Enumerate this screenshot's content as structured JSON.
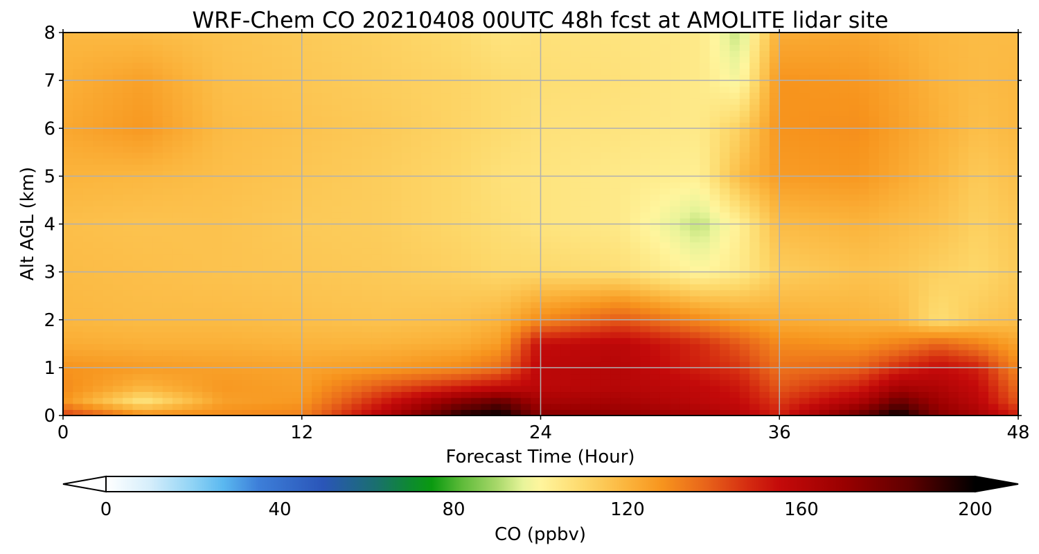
{
  "chart_data": {
    "type": "heatmap",
    "title": "WRF-Chem CO  20210408 00UTC 48h fcst at AMOLITE lidar site",
    "xlabel": "Forecast Time (Hour)",
    "ylabel": "Alt AGL (km)",
    "xlim": [
      0,
      48
    ],
    "ylim": [
      0,
      8
    ],
    "xticks": [
      "0",
      "12",
      "24",
      "36",
      "48"
    ],
    "yticks": [
      "0",
      "1",
      "2",
      "3",
      "4",
      "5",
      "6",
      "7",
      "8"
    ],
    "grid": true,
    "x": [
      0,
      4,
      8,
      12,
      16,
      20,
      22,
      24,
      28,
      32,
      34,
      36,
      40,
      42,
      44,
      46,
      48
    ],
    "y": [
      0,
      0.3,
      0.6,
      1,
      1.5,
      2,
      3,
      4,
      5,
      6,
      7,
      8
    ],
    "z": [
      [
        145,
        130,
        130,
        132,
        160,
        195,
        200,
        175,
        172,
        165,
        160,
        150,
        182,
        200,
        175,
        165,
        150
      ],
      [
        128,
        106,
        125,
        127,
        150,
        175,
        183,
        165,
        165,
        158,
        155,
        145,
        162,
        182,
        168,
        158,
        140
      ],
      [
        130,
        120,
        127,
        125,
        140,
        150,
        155,
        158,
        160,
        156,
        152,
        140,
        150,
        165,
        162,
        155,
        136
      ],
      [
        128,
        126,
        125,
        124,
        126,
        130,
        136,
        158,
        160,
        150,
        146,
        135,
        138,
        148,
        155,
        150,
        130
      ],
      [
        122,
        121,
        121,
        120,
        120,
        122,
        126,
        155,
        158,
        148,
        140,
        130,
        128,
        132,
        138,
        132,
        124
      ],
      [
        119,
        118,
        118,
        117,
        116,
        117,
        120,
        130,
        140,
        130,
        125,
        122,
        120,
        118,
        108,
        114,
        117
      ],
      [
        118,
        117,
        116,
        115,
        114,
        112,
        110,
        110,
        108,
        100,
        104,
        113,
        116,
        115,
        112,
        110,
        114
      ],
      [
        117,
        116,
        116,
        114,
        113,
        110,
        108,
        106,
        104,
        92,
        102,
        118,
        120,
        118,
        116,
        112,
        115
      ],
      [
        120,
        119,
        117,
        115,
        113,
        110,
        107,
        106,
        104,
        102,
        118,
        126,
        127,
        123,
        119,
        114,
        117
      ],
      [
        123,
        127,
        118,
        116,
        114,
        111,
        109,
        107,
        106,
        104,
        112,
        128,
        129,
        125,
        121,
        117,
        119
      ],
      [
        121,
        125,
        117,
        115,
        113,
        111,
        109,
        108,
        107,
        104,
        98,
        128,
        127,
        124,
        120,
        118,
        119
      ],
      [
        119,
        118,
        116,
        114,
        112,
        109,
        106,
        107,
        106,
        104,
        92,
        122,
        123,
        121,
        119,
        118,
        118
      ]
    ],
    "colorbar": {
      "label": "CO  (ppbv)",
      "range": [
        0,
        200
      ],
      "ticks": [
        "0",
        "40",
        "80",
        "120",
        "160",
        "200"
      ],
      "extend": "both",
      "stops": [
        [
          0,
          "#ffffff"
        ],
        [
          10,
          "#d6eefb"
        ],
        [
          20,
          "#8fd3f5"
        ],
        [
          27,
          "#5ab8f0"
        ],
        [
          35,
          "#3d7fd9"
        ],
        [
          50,
          "#2a55b8"
        ],
        [
          62,
          "#1a6f6f"
        ],
        [
          70,
          "#0d8a30"
        ],
        [
          75,
          "#0a9a10"
        ],
        [
          82,
          "#5fbb3a"
        ],
        [
          90,
          "#a8d86a"
        ],
        [
          96,
          "#e8f49a"
        ],
        [
          100,
          "#fff59d"
        ],
        [
          110,
          "#fdd86a"
        ],
        [
          120,
          "#fbb43c"
        ],
        [
          128,
          "#f7941d"
        ],
        [
          138,
          "#e8641a"
        ],
        [
          148,
          "#d42a10"
        ],
        [
          155,
          "#c40a0a"
        ],
        [
          170,
          "#990000"
        ],
        [
          185,
          "#5e0000"
        ],
        [
          200,
          "#000000"
        ]
      ]
    }
  }
}
